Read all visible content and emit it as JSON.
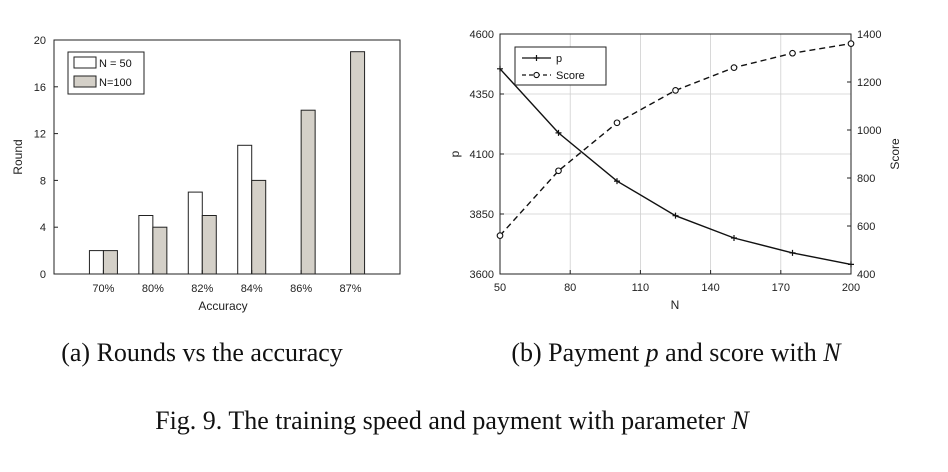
{
  "chart_data": [
    {
      "type": "bar",
      "categories": [
        "70%",
        "80%",
        "82%",
        "84%",
        "86%",
        "87%"
      ],
      "series": [
        {
          "name": "N = 50",
          "values": [
            2,
            5,
            7,
            11,
            0,
            0
          ],
          "color": "#ffffff"
        },
        {
          "name": "N=100",
          "values": [
            2,
            4,
            5,
            8,
            14,
            19
          ],
          "color": "#d4d0c8"
        }
      ],
      "xlabel": "Accuracy",
      "ylabel": "Round",
      "ylim": [
        0,
        20
      ],
      "yticks": [
        "0",
        "4",
        "8",
        "12",
        "16",
        "20"
      ],
      "legend_placement": "top-left",
      "grid": false
    },
    {
      "type": "line",
      "x": [
        50,
        75,
        100,
        125,
        150,
        175,
        200
      ],
      "xticks": [
        "50",
        "80",
        "110",
        "140",
        "170",
        "200"
      ],
      "xlim": [
        50,
        200
      ],
      "xlabel": "N",
      "series": [
        {
          "name": "p",
          "axis": "left",
          "style": "solid",
          "marker": "plus",
          "values": [
            4455,
            4188,
            3987,
            3843,
            3750,
            3688,
            3640
          ]
        },
        {
          "name": "Score",
          "axis": "right",
          "style": "dashed",
          "marker": "circle",
          "values": [
            560,
            830,
            1030,
            1165,
            1260,
            1320,
            1360
          ]
        }
      ],
      "ylabel_left": "p",
      "ylim_left": [
        3600,
        4600
      ],
      "yticks_left": [
        "3600",
        "3850",
        "4100",
        "4350",
        "4600"
      ],
      "ylabel_right": "Score",
      "ylim_right": [
        400,
        1400
      ],
      "yticks_right": [
        "400",
        "600",
        "800",
        "1000",
        "1200",
        "1400"
      ],
      "legend_placement": "top-left",
      "grid": true
    }
  ],
  "captions": {
    "a_prefix": "(a) Rounds vs the accuracy",
    "b_prefix": "(b) Payment ",
    "b_p": "p",
    "b_mid": " and score with ",
    "b_N": "N",
    "fig_prefix": "Fig. 9.  The training speed and payment with parameter ",
    "fig_N": "N"
  }
}
